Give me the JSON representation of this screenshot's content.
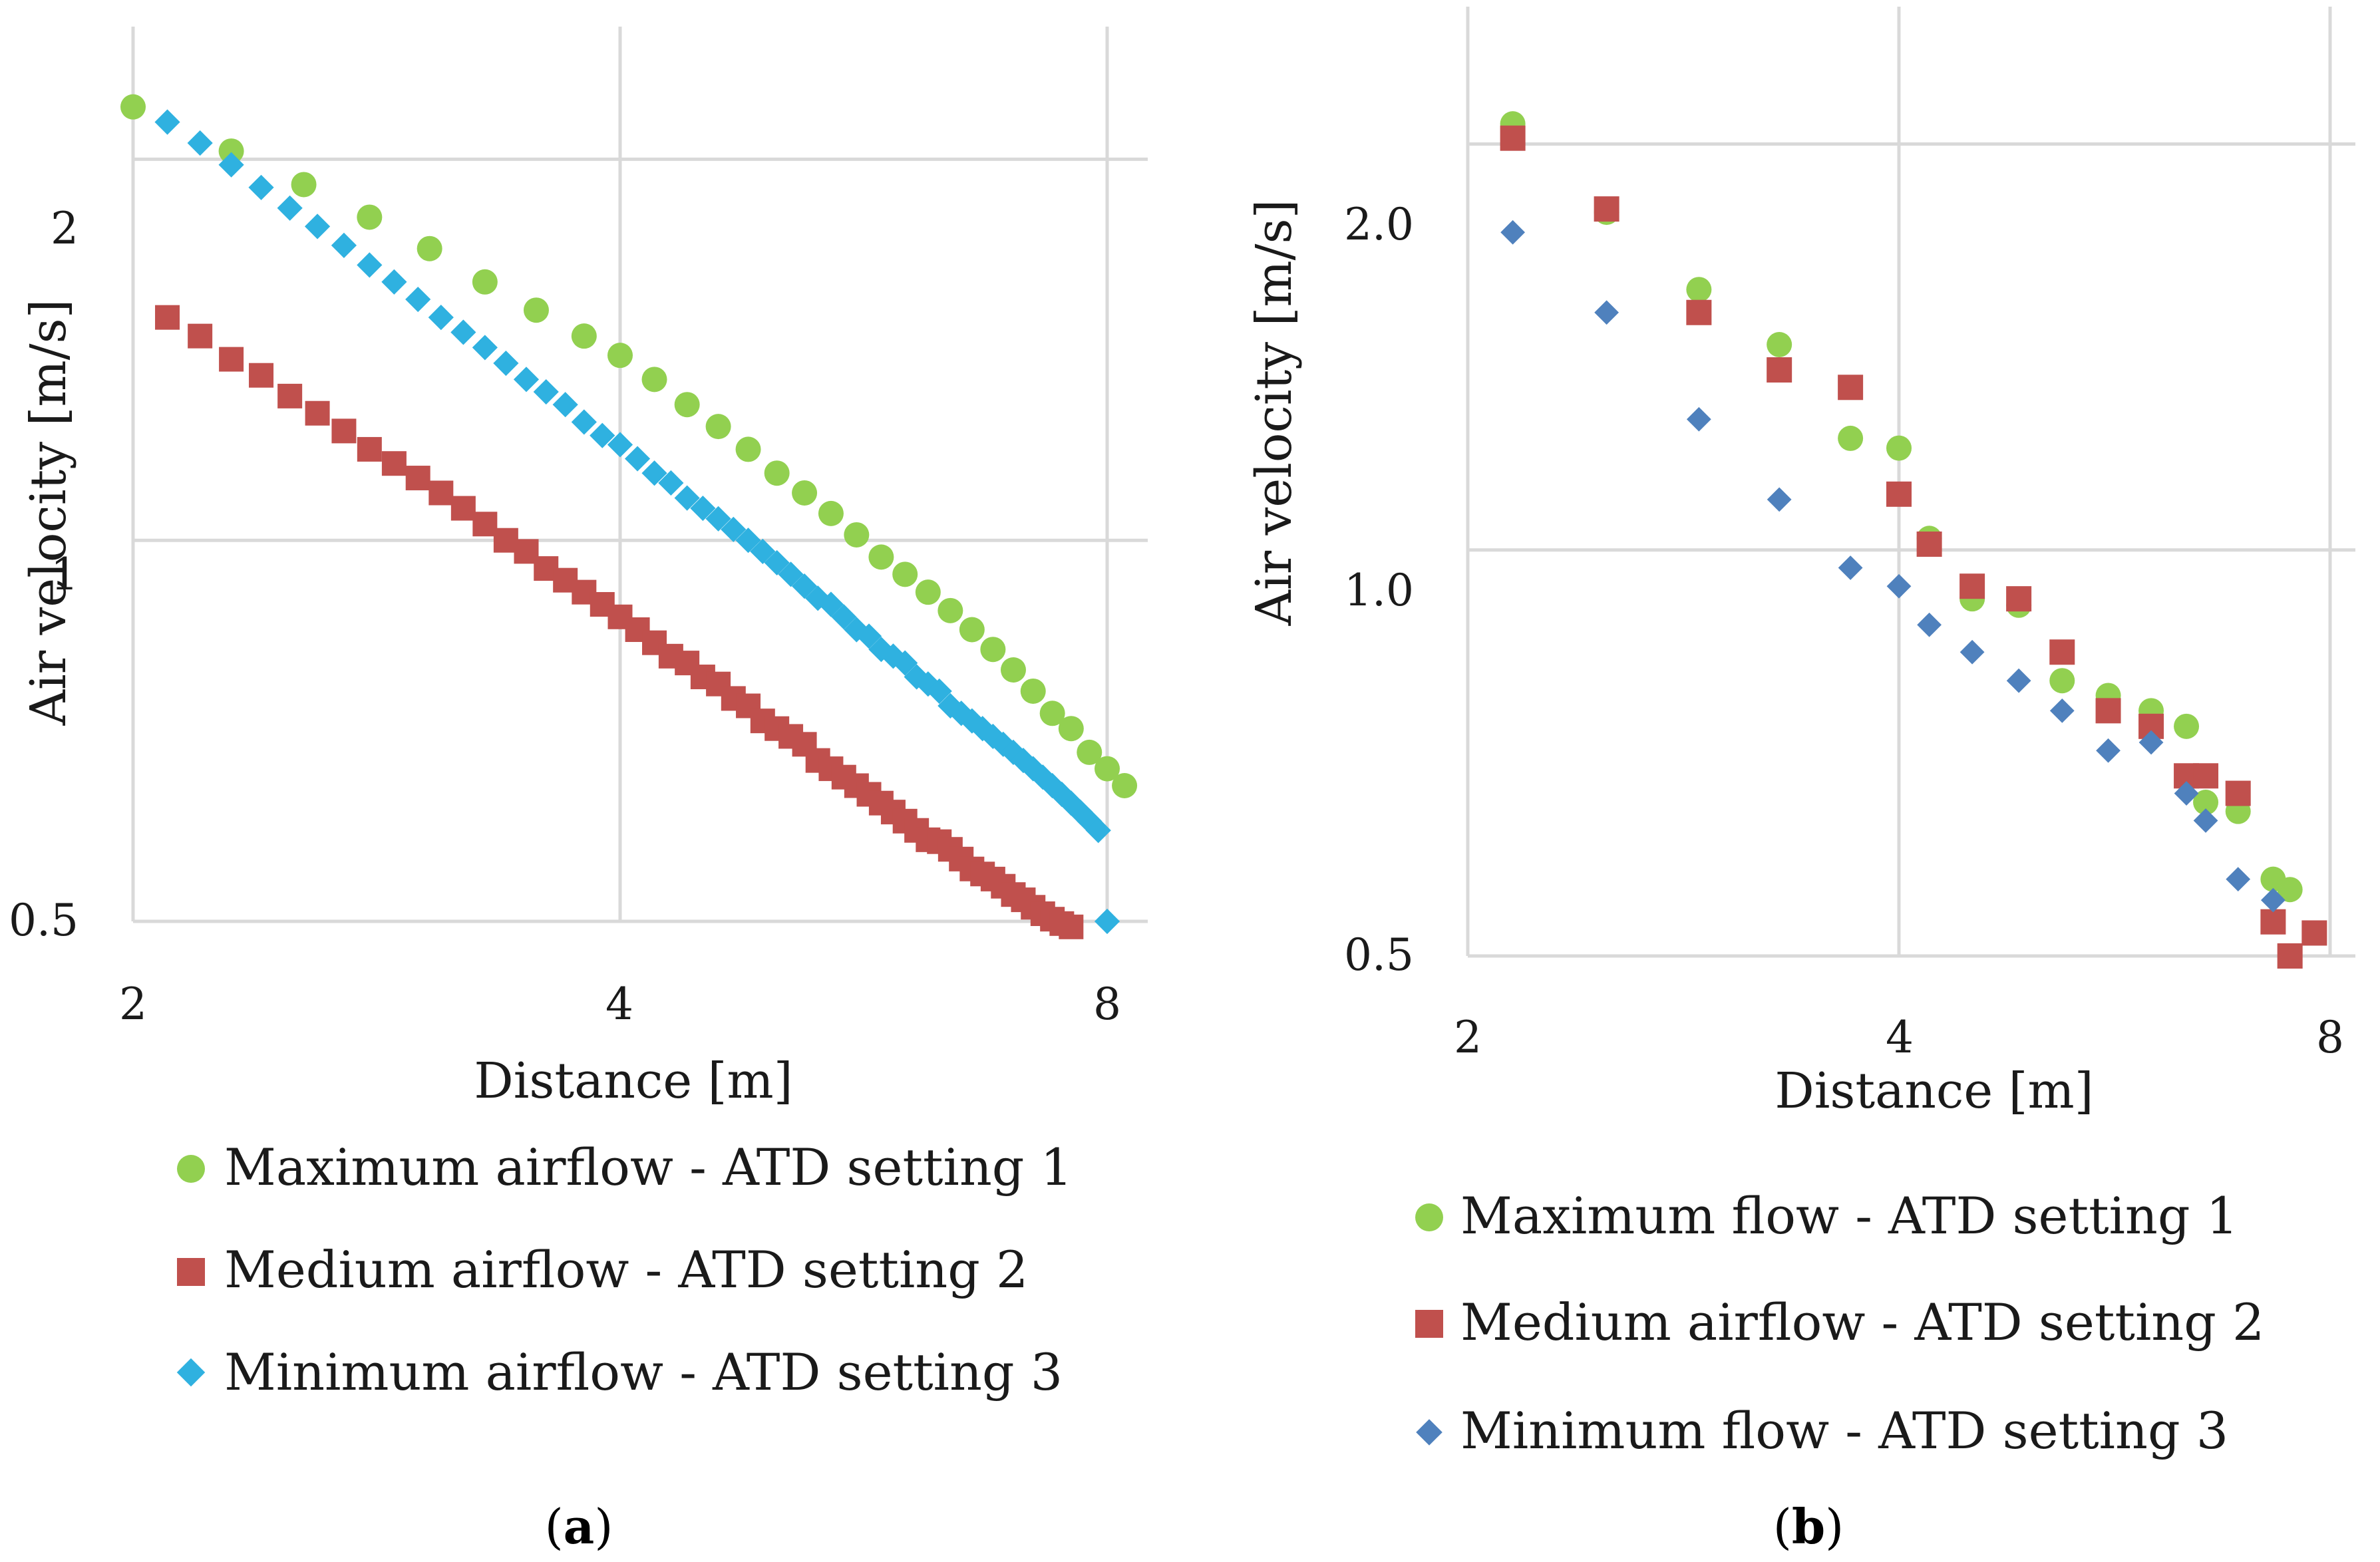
{
  "colors": {
    "green": "#92D050",
    "red": "#C0504D",
    "cyan": "#2FB1E0",
    "blue": "#4F81BD",
    "grid": "#D9D9D9"
  },
  "chart_data": [
    {
      "id": "a",
      "type": "scatter",
      "caption": {
        "open": "(",
        "letter": "a",
        "close": ")"
      },
      "xlabel": "Distance [m]",
      "ylabel": "Air velocity [m/s]",
      "xscale": "log",
      "yscale": "log",
      "xlim": [
        2,
        8
      ],
      "ylim": [
        0.5,
        2.5
      ],
      "xticks": [
        2,
        4,
        8
      ],
      "xtick_labels": [
        "2",
        "4",
        "8"
      ],
      "yticks": [
        0.5,
        1,
        2
      ],
      "ytick_labels": [
        "0.5",
        "1",
        "2"
      ],
      "grid": true,
      "legend_position": "bottom",
      "series": [
        {
          "name": "Maximum airflow - ATD setting 1",
          "marker": "circle",
          "color": "#92D050",
          "x": [
            2.0,
            2.3,
            2.55,
            2.8,
            3.05,
            3.3,
            3.55,
            3.8,
            4.0,
            4.2,
            4.4,
            4.6,
            4.8,
            5.0,
            5.2,
            5.4,
            5.6,
            5.8,
            6.0,
            6.2,
            6.4,
            6.6,
            6.8,
            7.0,
            7.2,
            7.4,
            7.6,
            7.8,
            8.0,
            8.2
          ],
          "y": [
            2.2,
            2.03,
            1.91,
            1.8,
            1.7,
            1.6,
            1.52,
            1.45,
            1.4,
            1.34,
            1.28,
            1.23,
            1.18,
            1.13,
            1.09,
            1.05,
            1.01,
            0.97,
            0.94,
            0.91,
            0.88,
            0.85,
            0.82,
            0.79,
            0.76,
            0.73,
            0.71,
            0.68,
            0.66,
            0.64
          ]
        },
        {
          "name": "Medium airflow - ATD setting 2",
          "marker": "square",
          "color": "#C0504D",
          "x": [
            2.1,
            2.2,
            2.3,
            2.4,
            2.5,
            2.6,
            2.7,
            2.8,
            2.9,
            3.0,
            3.1,
            3.2,
            3.3,
            3.4,
            3.5,
            3.6,
            3.7,
            3.8,
            3.9,
            4.0,
            4.1,
            4.2,
            4.3,
            4.4,
            4.5,
            4.6,
            4.7,
            4.8,
            4.9,
            5.0,
            5.1,
            5.2,
            5.3,
            5.4,
            5.5,
            5.6,
            5.7,
            5.8,
            5.9,
            6.0,
            6.1,
            6.2,
            6.3,
            6.4,
            6.5,
            6.6,
            6.7,
            6.8,
            6.9,
            7.0,
            7.1,
            7.2,
            7.3,
            7.4,
            7.5,
            7.6
          ],
          "y": [
            1.5,
            1.45,
            1.39,
            1.35,
            1.3,
            1.26,
            1.22,
            1.18,
            1.15,
            1.12,
            1.09,
            1.06,
            1.03,
            1.0,
            0.98,
            0.95,
            0.93,
            0.91,
            0.89,
            0.87,
            0.85,
            0.83,
            0.81,
            0.8,
            0.78,
            0.77,
            0.75,
            0.74,
            0.72,
            0.71,
            0.7,
            0.69,
            0.67,
            0.66,
            0.65,
            0.64,
            0.63,
            0.62,
            0.61,
            0.6,
            0.59,
            0.58,
            0.578,
            0.57,
            0.56,
            0.55,
            0.545,
            0.54,
            0.533,
            0.525,
            0.52,
            0.513,
            0.507,
            0.502,
            0.498,
            0.495
          ]
        },
        {
          "name": "Minimum airflow - ATD setting 3",
          "marker": "diamond",
          "color": "#2FB1E0",
          "x": [
            2.1,
            2.2,
            2.3,
            2.4,
            2.5,
            2.6,
            2.7,
            2.8,
            2.9,
            3.0,
            3.1,
            3.2,
            3.3,
            3.4,
            3.5,
            3.6,
            3.7,
            3.8,
            3.9,
            4.0,
            4.1,
            4.2,
            4.3,
            4.4,
            4.5,
            4.6,
            4.7,
            4.8,
            4.9,
            5.0,
            5.1,
            5.2,
            5.3,
            5.4,
            5.5,
            5.6,
            5.7,
            5.8,
            5.9,
            6.0,
            6.1,
            6.2,
            6.3,
            6.4,
            6.5,
            6.6,
            6.7,
            6.8,
            6.9,
            7.0,
            7.1,
            7.2,
            7.3,
            7.4,
            7.5,
            7.6,
            7.7,
            7.8,
            7.9,
            8.0
          ],
          "y": [
            2.14,
            2.06,
            1.98,
            1.9,
            1.83,
            1.77,
            1.71,
            1.65,
            1.6,
            1.55,
            1.5,
            1.46,
            1.42,
            1.38,
            1.34,
            1.31,
            1.28,
            1.24,
            1.21,
            1.19,
            1.16,
            1.13,
            1.11,
            1.08,
            1.06,
            1.04,
            1.02,
            1.0,
            0.98,
            0.96,
            0.94,
            0.92,
            0.9,
            0.89,
            0.87,
            0.85,
            0.84,
            0.82,
            0.81,
            0.8,
            0.78,
            0.77,
            0.76,
            0.74,
            0.73,
            0.72,
            0.71,
            0.7,
            0.69,
            0.68,
            0.67,
            0.66,
            0.65,
            0.64,
            0.63,
            0.62,
            0.61,
            0.6,
            0.59,
            0.5
          ]
        }
      ]
    },
    {
      "id": "b",
      "type": "scatter",
      "caption": {
        "open": "(",
        "letter": "b",
        "close": ")"
      },
      "xlabel": "Distance [m]",
      "ylabel": "Air velocity [m/s]",
      "xscale": "log",
      "yscale": "log",
      "xlim": [
        2,
        8
      ],
      "ylim": [
        0.5,
        2.5
      ],
      "xticks": [
        2,
        4,
        8
      ],
      "xtick_labels": [
        "2",
        "4",
        "8"
      ],
      "yticks": [
        0.5,
        1,
        2
      ],
      "ytick_labels": [
        "0.5",
        "1.0",
        "2.0"
      ],
      "grid": true,
      "legend_position": "bottom",
      "series": [
        {
          "name": "Maximum flow - ATD setting 1",
          "marker": "circle",
          "color": "#92D050",
          "x": [
            2.15,
            2.5,
            2.9,
            3.3,
            3.7,
            4.0,
            4.2,
            4.5,
            4.85,
            5.2,
            5.6,
            6.0,
            6.35,
            6.55,
            6.9,
            7.3,
            7.5
          ],
          "y": [
            2.07,
            1.78,
            1.56,
            1.42,
            1.21,
            1.19,
            1.02,
            0.92,
            0.91,
            0.8,
            0.78,
            0.76,
            0.74,
            0.65,
            0.64,
            0.57,
            0.56
          ]
        },
        {
          "name": "Medium airflow - ATD setting 2",
          "marker": "square",
          "color": "#C0504D",
          "x": [
            2.15,
            2.5,
            2.9,
            3.3,
            3.7,
            4.0,
            4.2,
            4.5,
            4.85,
            5.2,
            5.6,
            6.0,
            6.35,
            6.55,
            6.9,
            7.3,
            7.5,
            7.8
          ],
          "y": [
            2.02,
            1.79,
            1.5,
            1.36,
            1.32,
            1.1,
            1.01,
            0.94,
            0.92,
            0.84,
            0.76,
            0.74,
            0.68,
            0.68,
            0.66,
            0.53,
            0.5,
            0.52
          ]
        },
        {
          "name": "Minimum flow - ATD setting 3",
          "marker": "diamond",
          "color": "#4F81BD",
          "x": [
            2.15,
            2.5,
            2.9,
            3.3,
            3.7,
            4.0,
            4.2,
            4.5,
            4.85,
            5.2,
            5.6,
            6.0,
            6.35,
            6.55,
            6.9,
            7.3
          ],
          "y": [
            1.72,
            1.5,
            1.25,
            1.09,
            0.97,
            0.94,
            0.88,
            0.84,
            0.8,
            0.76,
            0.71,
            0.72,
            0.66,
            0.63,
            0.57,
            0.55
          ]
        }
      ]
    }
  ]
}
